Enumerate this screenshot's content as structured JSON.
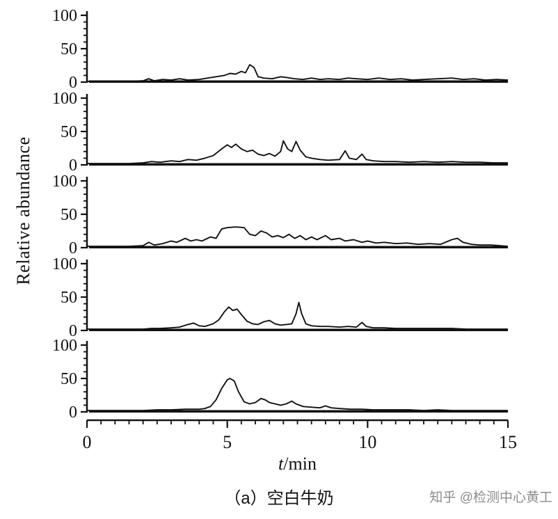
{
  "caption_note": "",
  "watermark": "知乎 @检测中心黄工",
  "chart_data": {
    "type": "line",
    "ylabel": "Relative abundance",
    "xlabel_italic": "t",
    "xlabel_rest": "/min",
    "caption": "（a）空白牛奶",
    "x_range": [
      0,
      15
    ],
    "y_range": [
      0,
      100
    ],
    "x_ticks": {
      "major": [
        0,
        5,
        10,
        15
      ],
      "minor_step": 0.5
    },
    "y_ticks": {
      "major": [
        0,
        50,
        100
      ],
      "minor_step": 10
    },
    "legend": "none",
    "grid": false,
    "series": [
      {
        "name": "trace-1",
        "points": [
          [
            0,
            1
          ],
          [
            0.5,
            1
          ],
          [
            1,
            1
          ],
          [
            1.5,
            1
          ],
          [
            2,
            2
          ],
          [
            2.2,
            5
          ],
          [
            2.4,
            2
          ],
          [
            2.7,
            4
          ],
          [
            3,
            3
          ],
          [
            3.3,
            5
          ],
          [
            3.6,
            3
          ],
          [
            4,
            4
          ],
          [
            4.3,
            6
          ],
          [
            4.6,
            8
          ],
          [
            4.9,
            10
          ],
          [
            5.1,
            13
          ],
          [
            5.3,
            12
          ],
          [
            5.5,
            16
          ],
          [
            5.65,
            14
          ],
          [
            5.8,
            26
          ],
          [
            5.95,
            22
          ],
          [
            6.1,
            8
          ],
          [
            6.3,
            6
          ],
          [
            6.6,
            5
          ],
          [
            6.9,
            8
          ],
          [
            7.1,
            7
          ],
          [
            7.4,
            5
          ],
          [
            7.7,
            4
          ],
          [
            8,
            6
          ],
          [
            8.3,
            4
          ],
          [
            8.6,
            5
          ],
          [
            9,
            4
          ],
          [
            9.3,
            6
          ],
          [
            9.6,
            5
          ],
          [
            10,
            4
          ],
          [
            10.4,
            6
          ],
          [
            10.8,
            4
          ],
          [
            11.2,
            5
          ],
          [
            11.6,
            3
          ],
          [
            12,
            4
          ],
          [
            12.5,
            5
          ],
          [
            13,
            6
          ],
          [
            13.4,
            4
          ],
          [
            13.8,
            5
          ],
          [
            14.2,
            3
          ],
          [
            14.6,
            4
          ],
          [
            15,
            3
          ]
        ]
      },
      {
        "name": "trace-2",
        "points": [
          [
            0,
            2
          ],
          [
            0.5,
            2
          ],
          [
            1,
            2
          ],
          [
            1.5,
            2
          ],
          [
            2,
            3
          ],
          [
            2.3,
            5
          ],
          [
            2.6,
            4
          ],
          [
            3,
            6
          ],
          [
            3.3,
            5
          ],
          [
            3.6,
            8
          ],
          [
            3.9,
            7
          ],
          [
            4.2,
            10
          ],
          [
            4.5,
            14
          ],
          [
            4.8,
            24
          ],
          [
            5,
            30
          ],
          [
            5.15,
            26
          ],
          [
            5.3,
            31
          ],
          [
            5.5,
            24
          ],
          [
            5.7,
            20
          ],
          [
            5.9,
            22
          ],
          [
            6.1,
            16
          ],
          [
            6.3,
            14
          ],
          [
            6.5,
            17
          ],
          [
            6.7,
            13
          ],
          [
            6.9,
            20
          ],
          [
            7.0,
            36
          ],
          [
            7.15,
            24
          ],
          [
            7.3,
            20
          ],
          [
            7.45,
            35
          ],
          [
            7.6,
            22
          ],
          [
            7.8,
            12
          ],
          [
            8,
            10
          ],
          [
            8.3,
            8
          ],
          [
            8.6,
            7
          ],
          [
            9,
            8
          ],
          [
            9.2,
            21
          ],
          [
            9.35,
            10
          ],
          [
            9.6,
            8
          ],
          [
            9.8,
            16
          ],
          [
            9.95,
            8
          ],
          [
            10.2,
            6
          ],
          [
            10.6,
            5
          ],
          [
            11,
            5
          ],
          [
            11.5,
            4
          ],
          [
            12,
            5
          ],
          [
            12.5,
            4
          ],
          [
            13,
            5
          ],
          [
            13.5,
            4
          ],
          [
            14,
            4
          ],
          [
            14.5,
            3
          ],
          [
            15,
            3
          ]
        ]
      },
      {
        "name": "trace-3",
        "points": [
          [
            0,
            2
          ],
          [
            0.5,
            2
          ],
          [
            1,
            2
          ],
          [
            1.5,
            2
          ],
          [
            2,
            3
          ],
          [
            2.2,
            8
          ],
          [
            2.4,
            4
          ],
          [
            2.7,
            6
          ],
          [
            3,
            10
          ],
          [
            3.2,
            8
          ],
          [
            3.5,
            14
          ],
          [
            3.7,
            10
          ],
          [
            3.9,
            12
          ],
          [
            4.1,
            10
          ],
          [
            4.4,
            16
          ],
          [
            4.6,
            14
          ],
          [
            4.8,
            28
          ],
          [
            5,
            30
          ],
          [
            5.3,
            31
          ],
          [
            5.6,
            30
          ],
          [
            5.8,
            20
          ],
          [
            6,
            18
          ],
          [
            6.2,
            25
          ],
          [
            6.4,
            22
          ],
          [
            6.6,
            16
          ],
          [
            6.8,
            18
          ],
          [
            7,
            15
          ],
          [
            7.2,
            20
          ],
          [
            7.4,
            14
          ],
          [
            7.6,
            18
          ],
          [
            7.8,
            12
          ],
          [
            8,
            16
          ],
          [
            8.2,
            12
          ],
          [
            8.5,
            18
          ],
          [
            8.7,
            12
          ],
          [
            9,
            14
          ],
          [
            9.2,
            10
          ],
          [
            9.5,
            12
          ],
          [
            9.8,
            8
          ],
          [
            10,
            10
          ],
          [
            10.3,
            7
          ],
          [
            10.6,
            8
          ],
          [
            11,
            6
          ],
          [
            11.4,
            7
          ],
          [
            11.8,
            5
          ],
          [
            12.2,
            6
          ],
          [
            12.6,
            5
          ],
          [
            13,
            12
          ],
          [
            13.2,
            14
          ],
          [
            13.4,
            8
          ],
          [
            13.7,
            5
          ],
          [
            14,
            4
          ],
          [
            14.4,
            4
          ],
          [
            14.7,
            3
          ],
          [
            15,
            2
          ]
        ]
      },
      {
        "name": "trace-4",
        "points": [
          [
            0,
            2
          ],
          [
            0.5,
            2
          ],
          [
            1,
            2
          ],
          [
            1.5,
            2
          ],
          [
            2,
            2
          ],
          [
            2.3,
            3
          ],
          [
            2.6,
            3
          ],
          [
            3,
            4
          ],
          [
            3.3,
            5
          ],
          [
            3.6,
            9
          ],
          [
            3.8,
            11
          ],
          [
            4,
            7
          ],
          [
            4.2,
            6
          ],
          [
            4.5,
            10
          ],
          [
            4.7,
            16
          ],
          [
            4.9,
            28
          ],
          [
            5.05,
            35
          ],
          [
            5.2,
            30
          ],
          [
            5.35,
            32
          ],
          [
            5.5,
            24
          ],
          [
            5.7,
            14
          ],
          [
            5.9,
            10
          ],
          [
            6.1,
            9
          ],
          [
            6.3,
            13
          ],
          [
            6.5,
            15
          ],
          [
            6.7,
            10
          ],
          [
            6.9,
            8
          ],
          [
            7.1,
            9
          ],
          [
            7.3,
            10
          ],
          [
            7.45,
            25
          ],
          [
            7.55,
            42
          ],
          [
            7.65,
            25
          ],
          [
            7.8,
            10
          ],
          [
            8,
            7
          ],
          [
            8.3,
            6
          ],
          [
            8.6,
            6
          ],
          [
            9,
            5
          ],
          [
            9.3,
            6
          ],
          [
            9.6,
            5
          ],
          [
            9.8,
            12
          ],
          [
            9.95,
            6
          ],
          [
            10.2,
            4
          ],
          [
            10.6,
            4
          ],
          [
            11,
            3
          ],
          [
            11.5,
            3
          ],
          [
            12,
            3
          ],
          [
            12.5,
            3
          ],
          [
            13,
            3
          ],
          [
            13.5,
            2
          ],
          [
            14,
            2
          ],
          [
            14.5,
            2
          ],
          [
            15,
            2
          ]
        ]
      },
      {
        "name": "trace-5",
        "points": [
          [
            0,
            2
          ],
          [
            0.5,
            2
          ],
          [
            1,
            2
          ],
          [
            1.5,
            2
          ],
          [
            2,
            2
          ],
          [
            2.5,
            3
          ],
          [
            3,
            3
          ],
          [
            3.5,
            4
          ],
          [
            4,
            4
          ],
          [
            4.2,
            5
          ],
          [
            4.4,
            8
          ],
          [
            4.6,
            18
          ],
          [
            4.8,
            35
          ],
          [
            5.0,
            48
          ],
          [
            5.1,
            50
          ],
          [
            5.25,
            46
          ],
          [
            5.4,
            30
          ],
          [
            5.6,
            15
          ],
          [
            5.8,
            12
          ],
          [
            6,
            14
          ],
          [
            6.2,
            20
          ],
          [
            6.35,
            18
          ],
          [
            6.5,
            14
          ],
          [
            6.7,
            12
          ],
          [
            6.9,
            10
          ],
          [
            7.1,
            12
          ],
          [
            7.3,
            16
          ],
          [
            7.45,
            12
          ],
          [
            7.7,
            8
          ],
          [
            8,
            7
          ],
          [
            8.3,
            6
          ],
          [
            8.5,
            9
          ],
          [
            8.7,
            6
          ],
          [
            9,
            5
          ],
          [
            9.4,
            4
          ],
          [
            9.8,
            4
          ],
          [
            10.2,
            3
          ],
          [
            10.6,
            3
          ],
          [
            11,
            3
          ],
          [
            11.5,
            3
          ],
          [
            12,
            2
          ],
          [
            12.5,
            3
          ],
          [
            13,
            2
          ],
          [
            13.5,
            2
          ],
          [
            14,
            2
          ],
          [
            14.5,
            2
          ],
          [
            15,
            2
          ]
        ]
      }
    ]
  }
}
